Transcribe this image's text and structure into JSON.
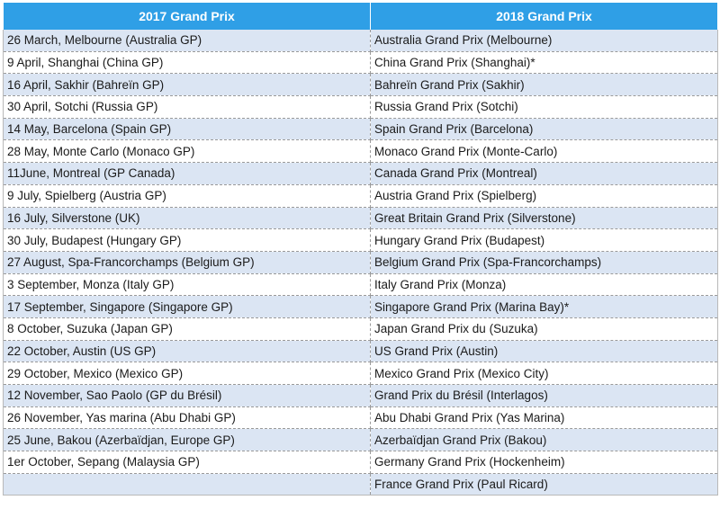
{
  "table": {
    "headers": [
      "2017 Grand Prix",
      "2018 Grand Prix"
    ],
    "rows": [
      [
        "26 March, Melbourne (Australia GP)",
        "Australia Grand Prix (Melbourne)"
      ],
      [
        "9 April, Shanghai (China GP)",
        "China Grand Prix (Shanghai)*"
      ],
      [
        "16 April, Sakhir (Bahreïn GP)",
        "Bahreïn Grand Prix (Sakhir)"
      ],
      [
        "30 April, Sotchi (Russia GP)",
        "Russia Grand Prix (Sotchi)"
      ],
      [
        "14 May, Barcelona (Spain GP)",
        "Spain Grand Prix (Barcelona)"
      ],
      [
        "28 May, Monte Carlo (Monaco GP)",
        "Monaco Grand Prix (Monte-Carlo)"
      ],
      [
        "11June, Montreal (GP Canada)",
        "Canada Grand Prix (Montreal)"
      ],
      [
        "9 July, Spielberg (Austria GP)",
        "Austria Grand Prix (Spielberg)"
      ],
      [
        "16 July, Silverstone (UK)",
        "Great Britain Grand Prix (Silverstone)"
      ],
      [
        "30 July, Budapest (Hungary GP)",
        "Hungary Grand Prix (Budapest)"
      ],
      [
        "27 August, Spa-Francorchamps (Belgium GP)",
        "Belgium Grand Prix (Spa-Francorchamps)"
      ],
      [
        "3 September, Monza (Italy GP)",
        "Italy Grand Prix (Monza)"
      ],
      [
        "17 September, Singapore (Singapore GP)",
        "Singapore Grand Prix (Marina Bay)*"
      ],
      [
        "8 October, Suzuka (Japan GP)",
        "Japan Grand Prix du (Suzuka)"
      ],
      [
        "22 October, Austin (US GP)",
        "US Grand Prix (Austin)"
      ],
      [
        "29 October, Mexico (Mexico GP)",
        "Mexico Grand Prix (Mexico City)"
      ],
      [
        "12 November, Sao Paolo (GP du Brésil)",
        "Grand Prix du Brésil (Interlagos)"
      ],
      [
        "26 November, Yas marina (Abu Dhabi GP)",
        "Abu Dhabi Grand Prix (Yas Marina)"
      ],
      [
        "25 June, Bakou (Azerbaïdjan, Europe GP)",
        "Azerbaïdjan Grand Prix (Bakou)"
      ],
      [
        "1er October, Sepang (Malaysia GP)",
        "Germany Grand Prix (Hockenheim)"
      ],
      [
        "",
        "France Grand Prix  (Paul Ricard)"
      ]
    ]
  },
  "colors": {
    "header_bg": "#2f9fe6",
    "header_text": "#ffffff",
    "row_alt_bg": "#dbe5f3",
    "row_bg": "#ffffff"
  }
}
